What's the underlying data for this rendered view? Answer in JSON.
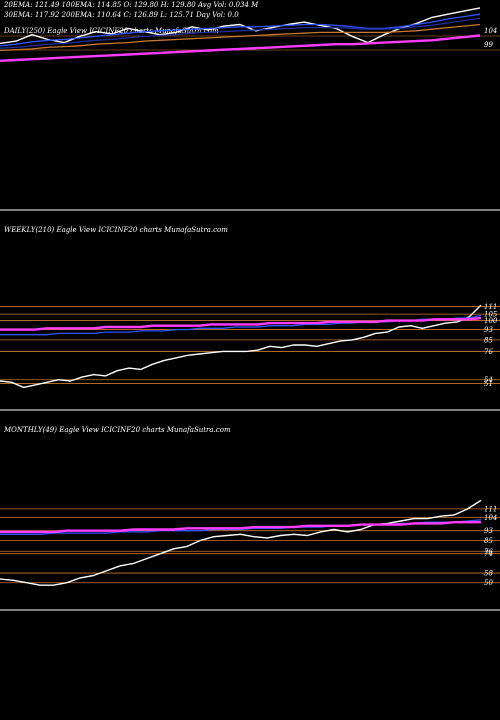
{
  "header": {
    "line1": "20EMA: 121.49    100EMA: 114.85    O: 129.80    H: 129.80    Avg Vol: 0.034  M",
    "line2": "30EMA: 117.92    200EMA: 110.64    C: 126.89    L: 125.71    Day Vol: 0.0"
  },
  "colors": {
    "background": "#000000",
    "price": "#ffffff",
    "ema_blue": "#2f54ff",
    "ema_dark_blue": "#1f2c9a",
    "ema_magenta": "#ff3cff",
    "ema_orange": "#c8782a",
    "level_line": "#c8782a",
    "separator": "#ffffff"
  },
  "chart_data": [
    {
      "name": "daily",
      "type": "line",
      "title": "DAILY(250) Eagle   View   ICICINF20  charts MunafaSutra.com",
      "y_ticks": [
        "104",
        "99"
      ],
      "series": [
        {
          "name": "price",
          "color": "#ffffff",
          "values": [
            101.5,
            101.8,
            102.6,
            102.0,
            101.6,
            102.4,
            103.0,
            102.7,
            103.4,
            103.0,
            102.6,
            102.9,
            103.6,
            103.2,
            103.7,
            103.9,
            103.1,
            103.5,
            103.9,
            104.2,
            103.8,
            103.4,
            102.4,
            101.6,
            102.6,
            103.4,
            104.0,
            104.8,
            105.2,
            105.6,
            106.0
          ]
        },
        {
          "name": "ema-fast",
          "color": "#2f54ff",
          "values": [
            101.2,
            101.4,
            101.7,
            101.9,
            102.0,
            102.2,
            102.4,
            102.6,
            102.8,
            103.0,
            103.1,
            103.2,
            103.3,
            103.4,
            103.5,
            103.6,
            103.6,
            103.7,
            103.8,
            103.9,
            103.9,
            103.8,
            103.6,
            103.4,
            103.4,
            103.6,
            103.9,
            104.2,
            104.6,
            104.9,
            105.2
          ]
        },
        {
          "name": "ema-slow",
          "color": "#1f2c9a",
          "values": [
            100.9,
            101.0,
            101.2,
            101.4,
            101.5,
            101.7,
            101.9,
            102.0,
            102.2,
            102.4,
            102.5,
            102.6,
            102.8,
            102.9,
            103.0,
            103.1,
            103.2,
            103.3,
            103.4,
            103.5,
            103.5,
            103.5,
            103.4,
            103.3,
            103.3,
            103.4,
            103.6,
            103.8,
            104.1,
            104.4,
            104.7
          ]
        },
        {
          "name": "ema-orange",
          "color": "#c8782a",
          "values": [
            100.6,
            100.7,
            100.8,
            101.0,
            101.1,
            101.2,
            101.4,
            101.5,
            101.6,
            101.8,
            101.9,
            102.0,
            102.1,
            102.2,
            102.3,
            102.4,
            102.5,
            102.6,
            102.7,
            102.8,
            102.9,
            102.9,
            102.9,
            102.9,
            102.9,
            103.0,
            103.1,
            103.3,
            103.5,
            103.7,
            103.9
          ]
        },
        {
          "name": "ema-magenta",
          "color": "#ff3cff",
          "values": [
            99.3,
            99.4,
            99.5,
            99.6,
            99.7,
            99.8,
            99.9,
            100.0,
            100.1,
            100.2,
            100.3,
            100.4,
            100.5,
            100.6,
            100.7,
            100.8,
            100.9,
            101.0,
            101.1,
            101.2,
            101.3,
            101.4,
            101.4,
            101.5,
            101.6,
            101.7,
            101.8,
            101.9,
            102.1,
            102.3,
            102.5
          ]
        }
      ]
    },
    {
      "name": "weekly",
      "type": "line",
      "title": "WEEKLY(210) Eagle   View   ICICINF20  charts MunafaSutra.com",
      "y_ticks": [
        "111",
        "105",
        "100",
        "93",
        "85",
        "76",
        "54",
        "51"
      ],
      "levels": [
        111,
        105,
        100,
        93,
        85,
        76,
        54,
        51
      ],
      "series": [
        {
          "name": "price",
          "color": "#ffffff",
          "values": [
            53,
            52,
            48,
            50,
            52,
            54,
            53,
            56,
            58,
            57,
            61,
            63,
            62,
            66,
            69,
            71,
            73,
            74,
            75,
            76,
            76,
            76,
            77,
            80,
            79,
            81,
            81,
            80,
            82,
            84,
            85,
            87,
            90,
            91,
            95,
            96,
            94,
            96,
            98,
            99,
            103,
            112
          ]
        },
        {
          "name": "ema-fast",
          "color": "#2f54ff",
          "values": [
            89,
            89,
            89,
            89,
            89,
            90,
            90,
            90,
            90,
            91,
            91,
            91,
            92,
            92,
            92,
            93,
            93,
            94,
            94,
            94,
            95,
            95,
            95,
            96,
            96,
            96,
            97,
            97,
            97,
            98,
            98,
            99,
            99,
            99,
            100,
            100,
            101,
            101,
            101,
            102,
            102,
            104
          ]
        },
        {
          "name": "ema-magenta",
          "color": "#ff3cff",
          "values": [
            93,
            93,
            93,
            93,
            94,
            94,
            94,
            94,
            94,
            95,
            95,
            95,
            95,
            96,
            96,
            96,
            96,
            96,
            97,
            97,
            97,
            97,
            97,
            98,
            98,
            98,
            98,
            98,
            99,
            99,
            99,
            99,
            99,
            100,
            100,
            100,
            100,
            101,
            101,
            101,
            101,
            102
          ]
        }
      ]
    },
    {
      "name": "monthly",
      "type": "line",
      "title": "MONTHLY(49) Eagle   View   ICICINF20  charts MunafaSutra.com",
      "y_ticks": [
        "111",
        "104",
        "93",
        "85",
        "76",
        "74",
        "58",
        "50"
      ],
      "levels": [
        111,
        104,
        93,
        85,
        76,
        74,
        58,
        50
      ],
      "series": [
        {
          "name": "price",
          "color": "#ffffff",
          "values": [
            53,
            52,
            50,
            48,
            48,
            50,
            54,
            56,
            60,
            64,
            66,
            70,
            74,
            78,
            80,
            85,
            88,
            89,
            90,
            88,
            87,
            89,
            90,
            89,
            92,
            94,
            92,
            94,
            98,
            99,
            101,
            103,
            103,
            105,
            106,
            111,
            118
          ]
        },
        {
          "name": "ema-fast",
          "color": "#2f54ff",
          "values": [
            90,
            90,
            90,
            90,
            91,
            91,
            91,
            91,
            91,
            92,
            92,
            92,
            93,
            93,
            93,
            93,
            94,
            94,
            94,
            95,
            95,
            95,
            96,
            96,
            96,
            97,
            97,
            98,
            98,
            98,
            99,
            99,
            100,
            100,
            100,
            101,
            102
          ]
        },
        {
          "name": "ema-magenta",
          "color": "#ff3cff",
          "values": [
            92,
            92,
            92,
            92,
            92,
            93,
            93,
            93,
            93,
            93,
            94,
            94,
            94,
            94,
            95,
            95,
            95,
            95,
            95,
            96,
            96,
            96,
            96,
            97,
            97,
            97,
            97,
            98,
            98,
            98,
            98,
            99,
            99,
            99,
            100,
            100,
            100
          ]
        }
      ]
    }
  ]
}
